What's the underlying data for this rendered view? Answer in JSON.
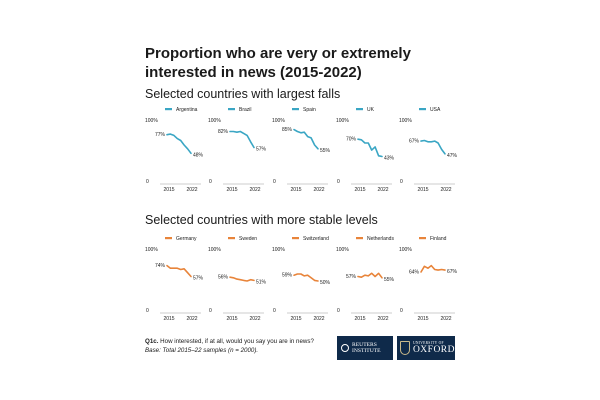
{
  "title": "Proportion who are very or extremely interested in news (2015-2022)",
  "section1_title": "Selected countries with largest falls",
  "section2_title": "Selected countries with more stable levels",
  "colors": {
    "falls": "#3aa6c4",
    "stable": "#e8843a",
    "axis": "#9a9a9a",
    "text": "#1a1a1a"
  },
  "chart_data": [
    {
      "type": "line",
      "title": "Argentina",
      "group": "falls",
      "x": [
        2015,
        2016,
        2017,
        2018,
        2019,
        2020,
        2021,
        2022
      ],
      "values": [
        77,
        78,
        76,
        71,
        68,
        61,
        55,
        48
      ],
      "ylim": [
        0,
        100
      ],
      "ytick_labels": [
        "0",
        "100%"
      ],
      "xtick_labels": [
        "2015",
        "2022"
      ],
      "start_label": "77%",
      "end_label": "48%"
    },
    {
      "type": "line",
      "title": "Brazil",
      "group": "falls",
      "x": [
        2015,
        2016,
        2017,
        2018,
        2019,
        2020,
        2021,
        2022
      ],
      "values": [
        82,
        82,
        81,
        82,
        79,
        76,
        66,
        57
      ],
      "ylim": [
        0,
        100
      ],
      "ytick_labels": [
        "0",
        "100%"
      ],
      "xtick_labels": [
        "2015",
        "2022"
      ],
      "start_label": "82%",
      "end_label": "57%"
    },
    {
      "type": "line",
      "title": "Spain",
      "group": "falls",
      "x": [
        2015,
        2016,
        2017,
        2018,
        2019,
        2020,
        2021,
        2022
      ],
      "values": [
        85,
        82,
        80,
        81,
        74,
        72,
        61,
        55
      ],
      "ylim": [
        0,
        100
      ],
      "ytick_labels": [
        "0",
        "100%"
      ],
      "xtick_labels": [
        "2015",
        "2022"
      ],
      "start_label": "85%",
      "end_label": "55%"
    },
    {
      "type": "line",
      "title": "UK",
      "group": "falls",
      "x": [
        2015,
        2016,
        2017,
        2018,
        2019,
        2020,
        2021,
        2022
      ],
      "values": [
        70,
        69,
        64,
        64,
        53,
        58,
        44,
        43
      ],
      "ylim": [
        0,
        100
      ],
      "ytick_labels": [
        "0",
        "100%"
      ],
      "xtick_labels": [
        "2015",
        "2022"
      ],
      "start_label": "70%",
      "end_label": "43%"
    },
    {
      "type": "line",
      "title": "USA",
      "group": "falls",
      "x": [
        2015,
        2016,
        2017,
        2018,
        2019,
        2020,
        2021,
        2022
      ],
      "values": [
        67,
        68,
        66,
        66,
        67,
        64,
        54,
        47
      ],
      "ylim": [
        0,
        100
      ],
      "ytick_labels": [
        "0",
        "100%"
      ],
      "xtick_labels": [
        "2015",
        "2022"
      ],
      "start_label": "67%",
      "end_label": "47%"
    },
    {
      "type": "line",
      "title": "Germany",
      "group": "stable",
      "x": [
        2015,
        2016,
        2017,
        2018,
        2019,
        2020,
        2021,
        2022
      ],
      "values": [
        74,
        70,
        70,
        70,
        68,
        69,
        63,
        57
      ],
      "ylim": [
        0,
        100
      ],
      "ytick_labels": [
        "0",
        "100%"
      ],
      "xtick_labels": [
        "2015",
        "2022"
      ],
      "start_label": "74%",
      "end_label": "57%"
    },
    {
      "type": "line",
      "title": "Sweden",
      "group": "stable",
      "x": [
        2015,
        2016,
        2017,
        2018,
        2019,
        2020,
        2021,
        2022
      ],
      "values": [
        56,
        55,
        53,
        52,
        51,
        50,
        52,
        51
      ],
      "ylim": [
        0,
        100
      ],
      "ytick_labels": [
        "0",
        "100%"
      ],
      "xtick_labels": [
        "2015",
        "2022"
      ],
      "start_label": "56%",
      "end_label": "51%"
    },
    {
      "type": "line",
      "title": "Switzerland",
      "group": "stable",
      "x": [
        2015,
        2016,
        2017,
        2018,
        2019,
        2020,
        2021,
        2022
      ],
      "values": [
        59,
        61,
        61,
        58,
        59,
        55,
        51,
        50
      ],
      "ylim": [
        0,
        100
      ],
      "ytick_labels": [
        "0",
        "100%"
      ],
      "xtick_labels": [
        "2015",
        "2022"
      ],
      "start_label": "59%",
      "end_label": "50%"
    },
    {
      "type": "line",
      "title": "Netherlands",
      "group": "stable",
      "x": [
        2015,
        2016,
        2017,
        2018,
        2019,
        2020,
        2021,
        2022
      ],
      "values": [
        57,
        56,
        59,
        58,
        62,
        57,
        62,
        55
      ],
      "ylim": [
        0,
        100
      ],
      "ytick_labels": [
        "0",
        "100%"
      ],
      "xtick_labels": [
        "2015",
        "2022"
      ],
      "start_label": "57%",
      "end_label": "55%"
    },
    {
      "type": "line",
      "title": "Finland",
      "group": "stable",
      "x": [
        2015,
        2016,
        2017,
        2018,
        2019,
        2020,
        2021,
        2022
      ],
      "values": [
        64,
        73,
        70,
        74,
        68,
        67,
        68,
        67
      ],
      "ylim": [
        0,
        100
      ],
      "ytick_labels": [
        "0",
        "100%"
      ],
      "xtick_labels": [
        "2015",
        "2022"
      ],
      "start_label": "64%",
      "end_label": "67%"
    }
  ],
  "footnote": {
    "question_id": "Q1c.",
    "question": "How interested, if at all, would you say you are in news?",
    "base": "Base: Total 2015–22 samples (n = 2000)."
  },
  "logos": {
    "reuters_line1": "REUTERS",
    "reuters_line2": "INSTITUTE",
    "oxford_small": "UNIVERSITY OF",
    "oxford_big": "OXFORD"
  }
}
